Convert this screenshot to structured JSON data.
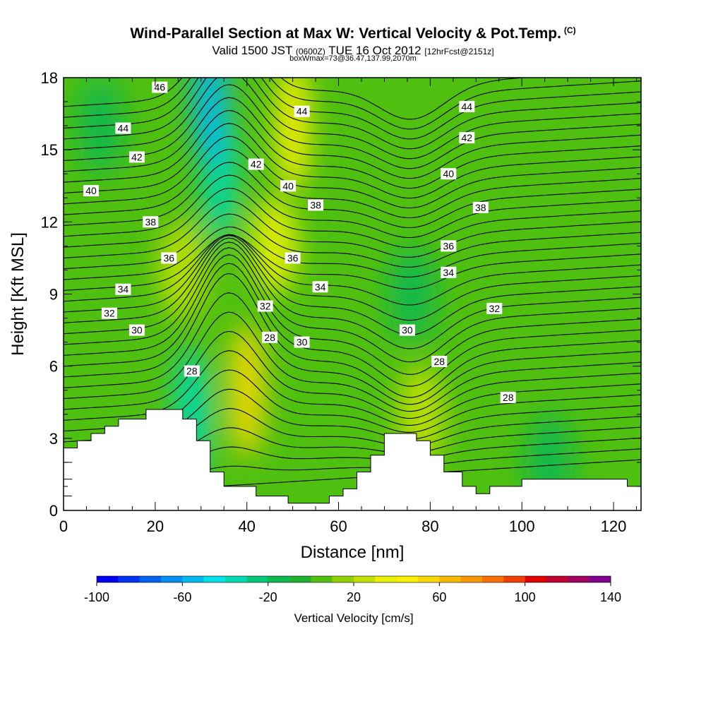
{
  "title": {
    "main": "Wind-Parallel Section at Max W: Vertical Velocity & Pot.Temp.",
    "copyright_mark": "(C)",
    "valid_prefix": "Valid 1500 JST",
    "valid_utc": "(0600Z)",
    "valid_date": "TUE 16 Oct 2012",
    "forecast_info": "[12hrFcst@2151z]",
    "box_info": "boxWmax=73@36.47,137.99,2070m"
  },
  "chart_data": {
    "type": "heatmap",
    "xlabel": "Distance [nm]",
    "ylabel": "Height [Kft MSL]",
    "xlim": [
      0,
      126
    ],
    "ylim": [
      0,
      18
    ],
    "x_ticks": [
      0,
      20,
      40,
      60,
      80,
      100,
      120
    ],
    "y_ticks": [
      0,
      3,
      6,
      9,
      12,
      15,
      18
    ],
    "colorbar": {
      "title": "Vertical Velocity [cm/s]",
      "min": -100,
      "max": 140,
      "step": 10,
      "tick_values": [
        -100,
        -60,
        -20,
        20,
        60,
        100,
        140
      ],
      "colors": [
        "#0000f0",
        "#0030f0",
        "#0060f0",
        "#0090f0",
        "#00b8f0",
        "#00e0e8",
        "#00d8b0",
        "#00c878",
        "#10b850",
        "#20b030",
        "#50c010",
        "#90d000",
        "#c0e000",
        "#e8f000",
        "#f8f000",
        "#f8d800",
        "#f8b800",
        "#f89800",
        "#f87000",
        "#f04000",
        "#e00000",
        "#c00030",
        "#a00060",
        "#800090"
      ]
    },
    "velocity_features": [
      {
        "x": 34,
        "y": 14,
        "value": -40
      },
      {
        "x": 32,
        "y": 17,
        "value": -60
      },
      {
        "x": 28,
        "y": 4,
        "value": -40
      },
      {
        "x": 40,
        "y": 5,
        "value": 50
      },
      {
        "x": 50,
        "y": 16,
        "value": 40
      },
      {
        "x": 46,
        "y": 11,
        "value": 30
      },
      {
        "x": 26,
        "y": 10,
        "value": 25
      },
      {
        "x": 76,
        "y": 9,
        "value": -20
      },
      {
        "x": 106,
        "y": 2,
        "value": -20
      },
      {
        "x": 78,
        "y": 4,
        "value": 20
      },
      {
        "x": 8,
        "y": 16,
        "value": -20
      }
    ],
    "theta_contours": [
      {
        "value": 28,
        "labels": [
          {
            "x": 28,
            "y": 5.8
          },
          {
            "x": 45,
            "y": 7.2
          },
          {
            "x": 82,
            "y": 6.2
          },
          {
            "x": 97,
            "y": 4.7
          }
        ]
      },
      {
        "value": 30,
        "labels": [
          {
            "x": 16,
            "y": 7.5
          },
          {
            "x": 52,
            "y": 7.0
          },
          {
            "x": 75,
            "y": 7.5
          }
        ]
      },
      {
        "value": 32,
        "labels": [
          {
            "x": 10,
            "y": 8.2
          },
          {
            "x": 44,
            "y": 8.5
          },
          {
            "x": 94,
            "y": 8.4
          }
        ]
      },
      {
        "value": 34,
        "labels": [
          {
            "x": 13,
            "y": 9.2
          },
          {
            "x": 56,
            "y": 9.3
          },
          {
            "x": 84,
            "y": 9.9
          }
        ]
      },
      {
        "value": 36,
        "labels": [
          {
            "x": 23,
            "y": 10.5
          },
          {
            "x": 50,
            "y": 10.5
          },
          {
            "x": 84,
            "y": 11.0
          }
        ]
      },
      {
        "value": 38,
        "labels": [
          {
            "x": 19,
            "y": 12.0
          },
          {
            "x": 55,
            "y": 12.7
          },
          {
            "x": 91,
            "y": 12.6
          }
        ]
      },
      {
        "value": 40,
        "labels": [
          {
            "x": 6,
            "y": 13.3
          },
          {
            "x": 49,
            "y": 13.5
          },
          {
            "x": 84,
            "y": 14.0
          }
        ]
      },
      {
        "value": 42,
        "labels": [
          {
            "x": 16,
            "y": 14.7
          },
          {
            "x": 42,
            "y": 14.4
          },
          {
            "x": 88,
            "y": 15.5
          }
        ]
      },
      {
        "value": 44,
        "labels": [
          {
            "x": 13,
            "y": 15.9
          },
          {
            "x": 52,
            "y": 16.6
          },
          {
            "x": 88,
            "y": 16.8
          }
        ]
      },
      {
        "value": 46,
        "labels": [
          {
            "x": 21,
            "y": 17.6
          }
        ]
      }
    ],
    "terrain": [
      [
        0,
        2.6
      ],
      [
        3,
        2.6
      ],
      [
        3,
        2.9
      ],
      [
        6,
        2.9
      ],
      [
        6,
        3.2
      ],
      [
        9,
        3.2
      ],
      [
        9,
        3.5
      ],
      [
        12,
        3.5
      ],
      [
        12,
        3.8
      ],
      [
        18,
        3.8
      ],
      [
        18,
        4.2
      ],
      [
        26,
        4.2
      ],
      [
        26,
        3.8
      ],
      [
        29,
        3.8
      ],
      [
        29,
        2.9
      ],
      [
        32,
        2.9
      ],
      [
        32,
        1.6
      ],
      [
        35,
        1.6
      ],
      [
        35,
        1.0
      ],
      [
        42,
        1.0
      ],
      [
        42,
        0.6
      ],
      [
        49,
        0.6
      ],
      [
        49,
        0.3
      ],
      [
        58,
        0.3
      ],
      [
        58,
        0.6
      ],
      [
        61,
        0.6
      ],
      [
        61,
        0.9
      ],
      [
        64,
        0.9
      ],
      [
        64,
        1.6
      ],
      [
        67,
        1.6
      ],
      [
        67,
        2.3
      ],
      [
        70,
        2.3
      ],
      [
        70,
        3.2
      ],
      [
        77,
        3.2
      ],
      [
        77,
        2.9
      ],
      [
        80,
        2.9
      ],
      [
        80,
        2.3
      ],
      [
        83,
        2.3
      ],
      [
        83,
        1.6
      ],
      [
        87,
        1.6
      ],
      [
        87,
        1.0
      ],
      [
        90,
        1.0
      ],
      [
        90,
        0.7
      ],
      [
        93,
        0.7
      ],
      [
        93,
        1.0
      ],
      [
        100,
        1.0
      ],
      [
        100,
        1.3
      ],
      [
        123,
        1.3
      ],
      [
        123,
        1.0
      ],
      [
        126,
        1.0
      ]
    ]
  }
}
